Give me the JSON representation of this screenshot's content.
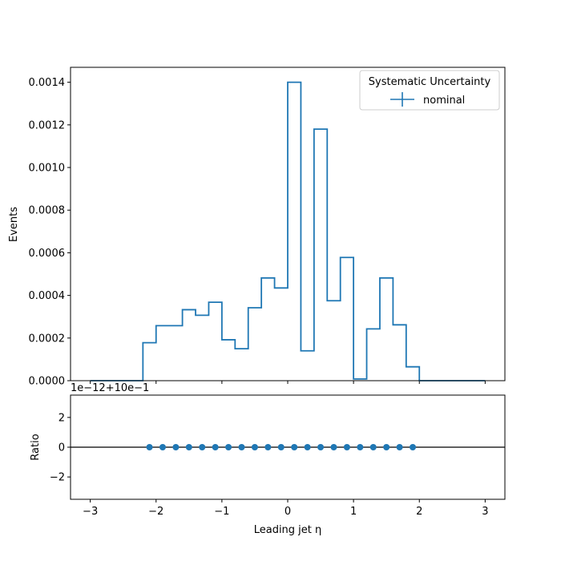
{
  "chart_data": [
    {
      "type": "histogram",
      "ylabel": "Events",
      "ylim": [
        0,
        0.00147
      ],
      "xlim": [
        -3.3,
        3.3
      ],
      "yticks": [
        "0.0000",
        "0.0002",
        "0.0004",
        "0.0006",
        "0.0008",
        "0.0010",
        "0.0012",
        "0.0014"
      ],
      "legend": {
        "title": "Systematic Uncertainty",
        "placement": "top-right",
        "entries": [
          "nominal"
        ]
      },
      "color": "#1f77b4",
      "series": [
        {
          "name": "nominal",
          "bin_edges": [
            -3.0,
            -2.2,
            -2.0,
            -1.8,
            -1.6,
            -1.4,
            -1.2,
            -1.0,
            -0.8,
            -0.6,
            -0.4,
            -0.2,
            0.0,
            0.2,
            0.4,
            0.6,
            0.8,
            1.0,
            1.2,
            1.4,
            1.6,
            1.8,
            2.0,
            3.0
          ],
          "values": [
            0.0,
            0.000178,
            0.000258,
            0.000258,
            0.000333,
            0.000307,
            0.000368,
            0.000192,
            0.00015,
            0.000342,
            0.000482,
            0.000435,
            0.0014,
            0.00014,
            0.00118,
            0.000375,
            0.000578,
            8e-06,
            0.000243,
            0.000482,
            0.000262,
            6.5e-05,
            0.0
          ]
        }
      ]
    },
    {
      "type": "scatter",
      "ylabel": "Ratio",
      "xlabel": "Leading jet  η",
      "offset_text": "1e−12+10e−1",
      "ylim": [
        -3.5,
        3.5
      ],
      "yticks": [
        "−2",
        "0",
        "2"
      ],
      "xticks": [
        "−3",
        "−2",
        "−1",
        "0",
        "1",
        "2",
        "3"
      ],
      "reference_line": 0,
      "color": "#1f77b4",
      "series": [
        {
          "name": "nominal",
          "x": [
            -2.1,
            -1.9,
            -1.7,
            -1.5,
            -1.3,
            -1.1,
            -0.9,
            -0.7,
            -0.5,
            -0.3,
            -0.1,
            0.1,
            0.3,
            0.5,
            0.7,
            0.9,
            1.1,
            1.3,
            1.5,
            1.7,
            1.9
          ],
          "y": [
            0,
            0,
            0,
            0,
            0,
            0,
            0,
            0,
            0,
            0,
            0,
            0,
            0,
            0,
            0,
            0,
            0,
            0,
            0,
            0,
            0
          ]
        }
      ]
    }
  ]
}
